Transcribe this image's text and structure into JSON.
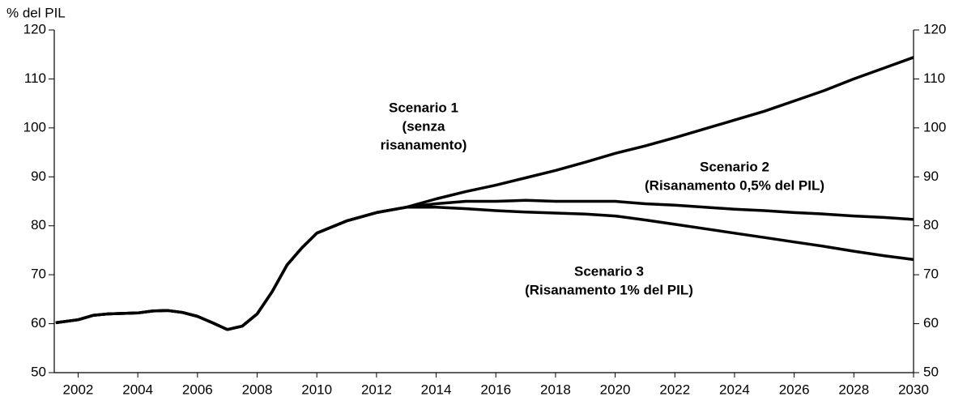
{
  "chart_data": {
    "type": "line",
    "y_label": "% del PIL",
    "x": [
      2001.25,
      2002,
      2002.5,
      2003,
      2004,
      2004.5,
      2005,
      2005.5,
      2006,
      2006.5,
      2007,
      2007.5,
      2008,
      2008.5,
      2009,
      2009.5,
      2010,
      2011,
      2012,
      2013,
      2014,
      2015,
      2016,
      2017,
      2018,
      2019,
      2020,
      2021,
      2022,
      2023,
      2024,
      2025,
      2026,
      2027,
      2028,
      2029,
      2030
    ],
    "series": [
      {
        "color": "#000000",
        "values": [
          60.2,
          60.8,
          61.7,
          62,
          62.2,
          62.6,
          62.7,
          62.3,
          61.5,
          60.2,
          58.8,
          59.5,
          62,
          66.5,
          72,
          75.5,
          78.5,
          81,
          82.7,
          83.8,
          85.5,
          87,
          88.3,
          89.8,
          91.3,
          93,
          94.8,
          96.3,
          98,
          99.8,
          101.6,
          103.4,
          105.5,
          107.6,
          110,
          112.2,
          114.4
        ]
      },
      {
        "color": "#000000",
        "values": [
          60.2,
          60.8,
          61.7,
          62,
          62.2,
          62.6,
          62.7,
          62.3,
          61.5,
          60.2,
          58.8,
          59.5,
          62,
          66.5,
          72,
          75.5,
          78.5,
          81,
          82.7,
          83.8,
          84.5,
          85,
          85,
          85.2,
          85,
          85,
          85,
          84.5,
          84.2,
          83.8,
          83.4,
          83.1,
          82.7,
          82.4,
          82,
          81.7,
          81.3
        ]
      },
      {
        "color": "#000000",
        "values": [
          60.2,
          60.8,
          61.7,
          62,
          62.2,
          62.6,
          62.7,
          62.3,
          61.5,
          60.2,
          58.8,
          59.5,
          62,
          66.5,
          72,
          75.5,
          78.5,
          81,
          82.7,
          83.8,
          83.8,
          83.5,
          83.1,
          82.8,
          82.6,
          82.4,
          82,
          81.2,
          80.3,
          79.4,
          78.5,
          77.6,
          76.7,
          75.8,
          74.8,
          73.9,
          73.1
        ]
      }
    ],
    "annotations": [
      {
        "lines": [
          "Scenario 1",
          "(senza",
          "risanamento)"
        ]
      },
      {
        "lines": [
          "Scenario 2",
          "(Risanamento 0,5% del PIL)"
        ]
      },
      {
        "lines": [
          "Scenario 3",
          "(Risanamento 1% del PIL)"
        ]
      }
    ],
    "xlim": [
      2001.2,
      2030
    ],
    "xticks": [
      2002,
      2004,
      2006,
      2008,
      2010,
      2012,
      2014,
      2016,
      2018,
      2020,
      2022,
      2024,
      2026,
      2028,
      2030
    ],
    "ylim": [
      50,
      120
    ],
    "yticks": [
      50,
      60,
      70,
      80,
      90,
      100,
      110,
      120
    ],
    "y2lim": [
      50,
      120
    ],
    "y2ticks": [
      50,
      60,
      70,
      80,
      90,
      100,
      110,
      120
    ],
    "grid": false
  }
}
